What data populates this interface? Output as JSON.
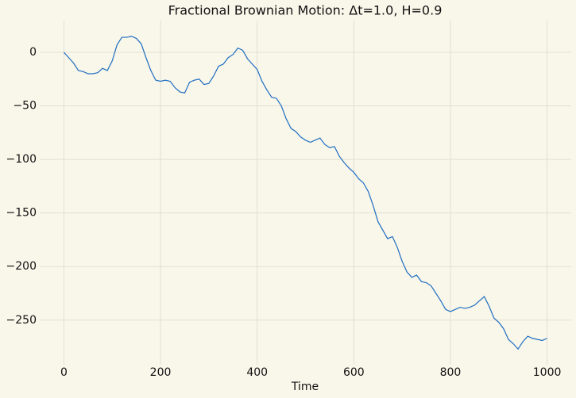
{
  "chart_data": {
    "type": "line",
    "title": "Fractional Brownian Motion: Δt=1.0, H=0.9",
    "x_label": "Time",
    "x": [
      0,
      10,
      20,
      30,
      40,
      50,
      60,
      70,
      80,
      90,
      100,
      110,
      120,
      130,
      140,
      150,
      160,
      170,
      180,
      190,
      200,
      210,
      220,
      230,
      240,
      250,
      260,
      270,
      280,
      290,
      300,
      310,
      320,
      330,
      340,
      350,
      360,
      370,
      380,
      390,
      400,
      410,
      420,
      430,
      440,
      450,
      460,
      470,
      480,
      490,
      500,
      510,
      520,
      530,
      540,
      550,
      560,
      570,
      580,
      590,
      600,
      610,
      620,
      630,
      640,
      650,
      660,
      670,
      680,
      690,
      700,
      710,
      720,
      730,
      740,
      750,
      760,
      770,
      780,
      790,
      800,
      810,
      820,
      830,
      840,
      850,
      860,
      870,
      880,
      890,
      900,
      910,
      920,
      930,
      940,
      950,
      960,
      970,
      980,
      990,
      1000
    ],
    "series": [
      {
        "color": "#1f6fc1",
        "values": [
          0,
          -5,
          -10,
          -17,
          -18,
          -20,
          -20,
          -19,
          -15,
          -17,
          -8,
          7,
          14,
          14,
          15,
          13,
          8,
          -5,
          -17,
          -26,
          -27,
          -26,
          -27,
          -33,
          -37,
          -38,
          -28,
          -26,
          -25,
          -30,
          -29,
          -22,
          -13,
          -11,
          -5,
          -2,
          4,
          2,
          -6,
          -11,
          -16,
          -27,
          -35,
          -42,
          -43,
          -50,
          -62,
          -71,
          -74,
          -79,
          -82,
          -84,
          -82,
          -80,
          -86,
          -89,
          -88,
          -97,
          -103,
          -108,
          -112,
          -118,
          -122,
          -130,
          -143,
          -158,
          -166,
          -174,
          -172,
          -182,
          -195,
          -205,
          -210,
          -208,
          -214,
          -215,
          -218,
          -225,
          -232,
          -240,
          -242,
          -240,
          -238,
          -239,
          -238,
          -236,
          -232,
          -228,
          -237,
          -248,
          -252,
          -258,
          -268,
          -272,
          -277,
          -270,
          -265,
          -267,
          -268,
          -269,
          -267
        ]
      }
    ],
    "xlim": [
      -50,
      1050
    ],
    "ylim": [
      -291.6,
      29.6
    ],
    "xticks": [
      0,
      200,
      400,
      600,
      800,
      1000
    ],
    "yticks": [
      0,
      {
        "value": -50,
        "label": "−50"
      },
      {
        "value": -100,
        "label": "−100"
      },
      {
        "value": -150,
        "label": "−150"
      },
      {
        "value": -200,
        "label": "−200"
      },
      {
        "value": -250,
        "label": "−250"
      }
    ],
    "grid": true
  }
}
